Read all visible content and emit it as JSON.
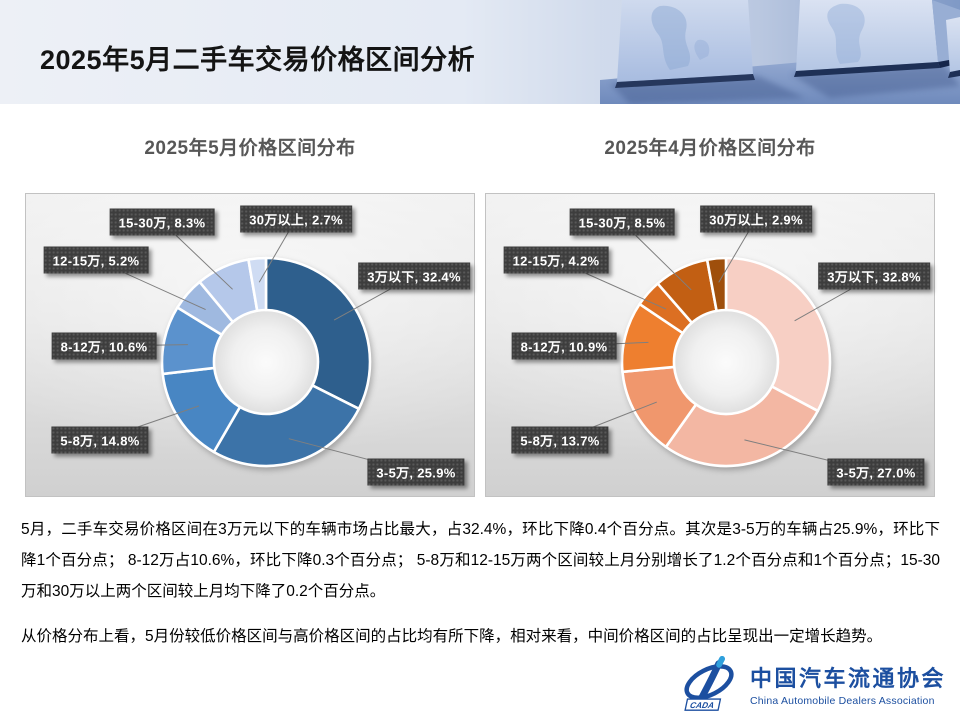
{
  "slide": {
    "title": "2025年5月二手车交易价格区间分析"
  },
  "chart_data": [
    {
      "type": "pie",
      "subtype": "donut",
      "title": "2025年5月价格区间分布",
      "unit": "%",
      "legend_position": "none",
      "labels": "outside-callouts",
      "start_angle_deg": 0,
      "categories": [
        "3万以下",
        "3-5万",
        "5-8万",
        "8-12万",
        "12-15万",
        "15-30万",
        "30万以上"
      ],
      "values": [
        32.4,
        25.9,
        14.8,
        10.6,
        5.2,
        8.3,
        2.7
      ],
      "colors": [
        "#2E5F8D",
        "#3C73A8",
        "#4886C3",
        "#5B92CD",
        "#9FB9E0",
        "#B5C8EA",
        "#CFDCF3"
      ]
    },
    {
      "type": "pie",
      "subtype": "donut",
      "title": "2025年4月价格区间分布",
      "unit": "%",
      "legend_position": "none",
      "labels": "outside-callouts",
      "start_angle_deg": 0,
      "categories": [
        "3万以下",
        "3-5万",
        "5-8万",
        "8-12万",
        "12-15万",
        "15-30万",
        "30万以上"
      ],
      "values": [
        32.8,
        27.0,
        13.7,
        10.9,
        4.2,
        8.5,
        2.9
      ],
      "colors": [
        "#F7CFC4",
        "#F3B7A3",
        "#F0976D",
        "#EE7F2F",
        "#DC6F22",
        "#C25F13",
        "#9F4F0C"
      ]
    }
  ],
  "analysis": {
    "paragraphs": [
      "5月，二手车交易价格区间在3万元以下的车辆市场占比最大，占32.4%，环比下降0.4个百分点。其次是3-5万的车辆占25.9%，环比下降1个百分点； 8-12万占10.6%，环比下降0.3个百分点； 5-8万和12-15万两个区间较上月分别增长了1.2个百分点和1个百分点；15-30万和30万以上两个区间较上月均下降了0.2个百分点。",
      "从价格分布上看，5月份较低价格区间与高价格区间的占比均有所下降，相对来看，中间价格区间的占比呈现出一定增长趋势。"
    ]
  },
  "logo": {
    "acronym": "CADA",
    "name_cn": "中国汽车流通协会",
    "name_en": "China Automobile Dealers Association",
    "brand_color": "#1C4FA0",
    "accent_color": "#2FA0DC"
  }
}
